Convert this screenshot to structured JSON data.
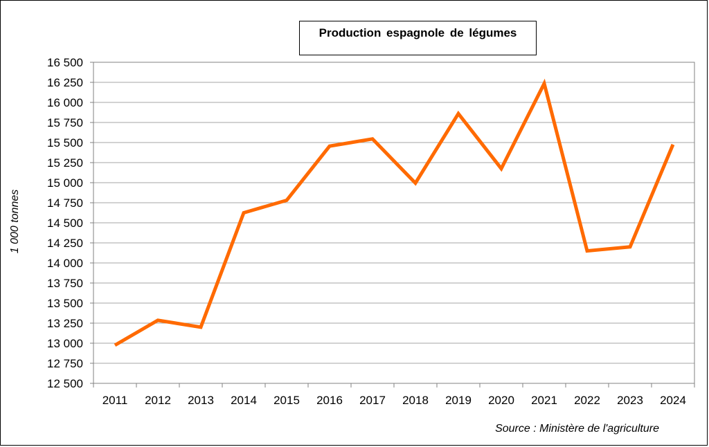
{
  "chart_data": {
    "type": "line",
    "title": "Production  espagnole  de légumes",
    "ylabel": "1 000 tonnes",
    "xlabel": "",
    "source": "Source : Ministère de l'agriculture",
    "categories": [
      "2011",
      "2012",
      "2013",
      "2014",
      "2015",
      "2016",
      "2017",
      "2018",
      "2019",
      "2020",
      "2021",
      "2022",
      "2023",
      "2024"
    ],
    "series": [
      {
        "values": [
          12975,
          13285,
          13200,
          14625,
          14780,
          15455,
          15545,
          14995,
          15860,
          15175,
          16235,
          14150,
          14200,
          15475
        ]
      }
    ],
    "ylim": [
      12500,
      16500
    ],
    "yticks": [
      12500,
      12750,
      13000,
      13250,
      13500,
      13750,
      14000,
      14250,
      14500,
      14750,
      15000,
      15250,
      15500,
      15750,
      16000,
      16250,
      16500
    ],
    "ytick_labels": [
      "12 500",
      "12 750",
      "13 000",
      "13 250",
      "13 500",
      "13 750",
      "14 000",
      "14 250",
      "14 500",
      "14 750",
      "15 000",
      "15 250",
      "15 500",
      "15 750",
      "16 000",
      "16 250",
      "16 500"
    ],
    "grid": true,
    "legend": "none",
    "line_color": "#FF6A00"
  }
}
